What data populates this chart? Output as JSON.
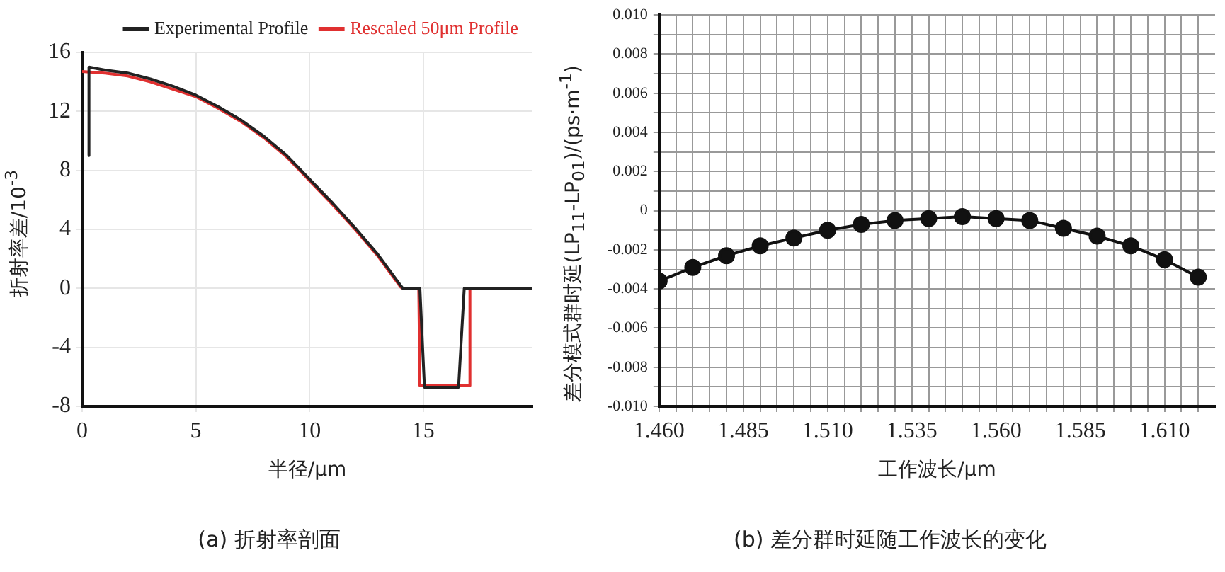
{
  "chart_data": [
    {
      "type": "line",
      "title": "(a) 折射率剖面",
      "xlabel": "半径/μm",
      "ylabel": "折射率差/10$^{-3}$",
      "xlim": [
        0,
        19.8
      ],
      "xticks": [
        0,
        5,
        10,
        15
      ],
      "ylim": [
        -8,
        16
      ],
      "yticks": [
        -8,
        -4,
        0,
        4,
        8,
        12,
        16
      ],
      "grid": true,
      "legend": "top right",
      "marker": "none",
      "line_style": "solid",
      "series": [
        {
          "name": "Experimental Profile",
          "color": "#222222",
          "x": [
            0.25,
            0.3,
            1,
            2,
            3,
            4,
            5,
            6,
            7,
            8,
            9,
            10,
            11,
            12,
            13,
            14,
            14.1,
            14.85,
            15.05,
            16.55,
            16.8,
            19.8
          ],
          "values": [
            9,
            15,
            14.8,
            14.6,
            14.2,
            13.7,
            13.1,
            12.3,
            11.4,
            10.3,
            9,
            7.4,
            5.8,
            4.1,
            2.3,
            0.2,
            0,
            0,
            -6.7,
            -6.7,
            0,
            0
          ]
        },
        {
          "name": "Rescaled 50μm Profile",
          "color": "#e03030",
          "x": [
            0,
            1,
            2,
            3,
            4,
            5,
            6,
            7,
            8,
            9,
            10,
            11,
            12,
            13,
            14,
            14.1,
            14.8,
            14.85,
            17,
            17.05,
            19.8
          ],
          "values": [
            14.7,
            14.6,
            14.4,
            14,
            13.5,
            13,
            12.2,
            11.3,
            10.2,
            8.9,
            7.3,
            5.7,
            4,
            2.2,
            0.1,
            0,
            0,
            -6.6,
            -6.6,
            0,
            0
          ]
        }
      ]
    },
    {
      "type": "line",
      "title": "(b) 差分群时延随工作波长的变化",
      "xlabel": "工作波长/μm",
      "ylabel": "差分模式群时延(LP$_{11}$-LP$_{01}$)/(ps·m$^{-1}$)",
      "xlim": [
        1.46,
        1.625
      ],
      "xticks": [
        {
          "value": 1.46,
          "label": "1.460"
        },
        {
          "value": 1.465,
          "label": null
        },
        {
          "value": 1.47,
          "label": null
        },
        {
          "value": 1.475,
          "label": null
        },
        {
          "value": 1.48,
          "label": null
        },
        {
          "value": 1.485,
          "label": "1.485"
        },
        {
          "value": 1.49,
          "label": null
        },
        {
          "value": 1.495,
          "label": null
        },
        {
          "value": 1.5,
          "label": null
        },
        {
          "value": 1.505,
          "label": null
        },
        {
          "value": 1.51,
          "label": "1.510"
        },
        {
          "value": 1.515,
          "label": null
        },
        {
          "value": 1.52,
          "label": null
        },
        {
          "value": 1.525,
          "label": null
        },
        {
          "value": 1.53,
          "label": null
        },
        {
          "value": 1.535,
          "label": "1.535"
        },
        {
          "value": 1.54,
          "label": null
        },
        {
          "value": 1.545,
          "label": null
        },
        {
          "value": 1.55,
          "label": null
        },
        {
          "value": 1.555,
          "label": null
        },
        {
          "value": 1.56,
          "label": "1.560"
        },
        {
          "value": 1.565,
          "label": null
        },
        {
          "value": 1.57,
          "label": null
        },
        {
          "value": 1.575,
          "label": null
        },
        {
          "value": 1.58,
          "label": null
        },
        {
          "value": 1.585,
          "label": "1.585"
        },
        {
          "value": 1.59,
          "label": null
        },
        {
          "value": 1.595,
          "label": null
        },
        {
          "value": 1.6,
          "label": null
        },
        {
          "value": 1.605,
          "label": null
        },
        {
          "value": 1.61,
          "label": "1.610"
        },
        {
          "value": 1.615,
          "label": null
        },
        {
          "value": 1.62,
          "label": null
        }
      ],
      "ylim": [
        -0.01,
        0.01
      ],
      "yticks": [
        {
          "value": -0.01,
          "label": "-0.010"
        },
        {
          "value": -0.009,
          "label": null
        },
        {
          "value": -0.008,
          "label": "-0.008"
        },
        {
          "value": -0.007,
          "label": null
        },
        {
          "value": -0.006,
          "label": "-0.006"
        },
        {
          "value": -0.005,
          "label": null
        },
        {
          "value": -0.004,
          "label": "-0.004"
        },
        {
          "value": -0.003,
          "label": null
        },
        {
          "value": -0.002,
          "label": "-0.002"
        },
        {
          "value": -0.001,
          "label": null
        },
        0,
        {
          "value": 0.001,
          "label": null
        },
        {
          "value": 0.002,
          "label": "0.002"
        },
        {
          "value": 0.003,
          "label": null
        },
        {
          "value": 0.004,
          "label": "0.004"
        },
        {
          "value": 0.005,
          "label": null
        },
        {
          "value": 0.006,
          "label": "0.006"
        },
        {
          "value": 0.007,
          "label": null
        },
        {
          "value": 0.008,
          "label": "0.008"
        },
        {
          "value": 0.009,
          "label": null
        },
        {
          "value": 0.01,
          "label": "0.010"
        }
      ],
      "grid": true,
      "marker": "circle",
      "line_style": "solid",
      "x": [
        1.46,
        1.47,
        1.48,
        1.49,
        1.5,
        1.51,
        1.52,
        1.53,
        1.54,
        1.55,
        1.56,
        1.57,
        1.58,
        1.59,
        1.6,
        1.61,
        1.62
      ],
      "series": [
        {
          "color": "#111111",
          "values": [
            -0.0036,
            -0.0029,
            -0.0023,
            -0.0018,
            -0.0014,
            -0.001,
            -0.0007,
            -0.0005,
            -0.0004,
            -0.0003,
            -0.0004,
            -0.0005,
            -0.0009,
            -0.0013,
            -0.0018,
            -0.0025,
            -0.0034
          ]
        }
      ]
    }
  ]
}
